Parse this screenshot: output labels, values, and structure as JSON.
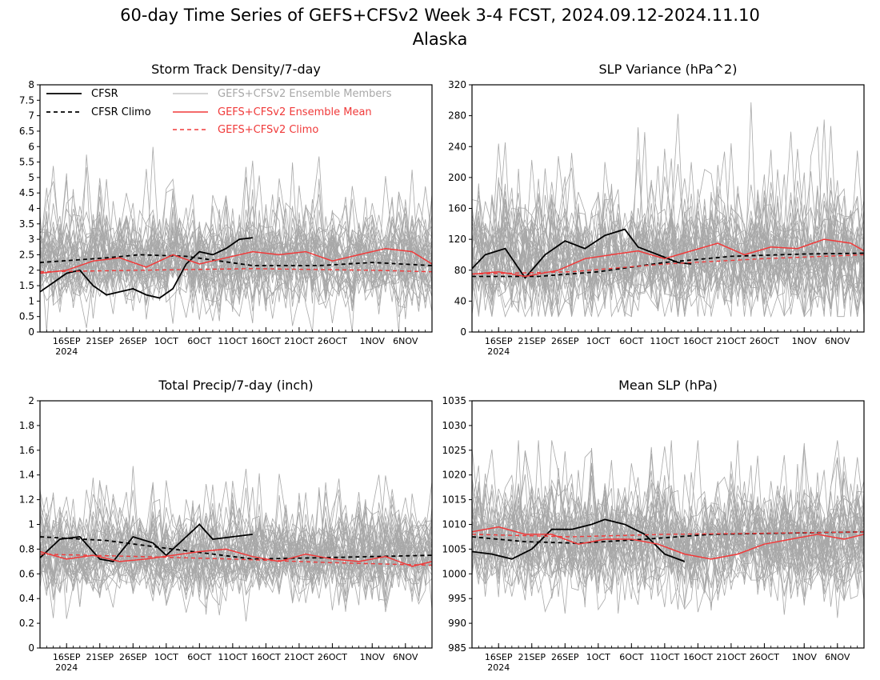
{
  "figure": {
    "title": "60-day Time Series of GEFS+CFSv2 Week 3-4 FCST, 2024.09.12-2024.11.10",
    "subtitle": "Alaska"
  },
  "colors": {
    "cfsr": "#000000",
    "members": "#a8a8a8",
    "ens_mean": "#f03a3a",
    "ens_climo": "#f03a3a"
  },
  "legend": {
    "cfsr": "CFSR",
    "cfsr_climo": "CFSR Climo",
    "members": "GEFS+CFSv2 Ensemble Members",
    "ens_mean": "GEFS+CFSv2 Ensemble Mean",
    "ens_climo": "GEFS+CFSv2 Climo"
  },
  "x_axis": {
    "start_date": "2024-09-12",
    "days": 60,
    "ticks": [
      {
        "date": "2024-09-16",
        "label": "16SEP"
      },
      {
        "date": "2024-09-21",
        "label": "21SEP"
      },
      {
        "date": "2024-09-26",
        "label": "26SEP"
      },
      {
        "date": "2024-10-01",
        "label": "1OCT"
      },
      {
        "date": "2024-10-06",
        "label": "6OCT"
      },
      {
        "date": "2024-10-11",
        "label": "11OCT"
      },
      {
        "date": "2024-10-16",
        "label": "16OCT"
      },
      {
        "date": "2024-10-21",
        "label": "21OCT"
      },
      {
        "date": "2024-10-26",
        "label": "26OCT"
      },
      {
        "date": "2024-11-01",
        "label": "1NOV"
      },
      {
        "date": "2024-11-06",
        "label": "6NOV"
      }
    ],
    "year_label": "2024"
  },
  "chart_data": [
    {
      "type": "line",
      "title": "Storm Track Density/7-day",
      "ylim": [
        0,
        8
      ],
      "yticks": [
        "0",
        "0.5",
        "1",
        "1.5",
        "2",
        "2.5",
        "3",
        "3.5",
        "4",
        "4.5",
        "5",
        "5.5",
        "6",
        "6.5",
        "7",
        "7.5",
        "8"
      ],
      "ytick_values": [
        0,
        0.5,
        1,
        1.5,
        2,
        2.5,
        3,
        3.5,
        4,
        4.5,
        5,
        5.5,
        6,
        6.5,
        7,
        7.5,
        8
      ],
      "legend": true,
      "member_spread": {
        "count": 40,
        "center": 2.3,
        "sd": 0.7,
        "min": 0,
        "max": 6.0,
        "seed": 11
      },
      "series": [
        {
          "name": "CFSR",
          "style": "cfsr",
          "x": [
            "2024-09-12",
            "2024-09-14",
            "2024-09-16",
            "2024-09-18",
            "2024-09-20",
            "2024-09-22",
            "2024-09-24",
            "2024-09-26",
            "2024-09-28",
            "2024-09-30",
            "2024-10-02",
            "2024-10-04",
            "2024-10-06",
            "2024-10-08",
            "2024-10-10",
            "2024-10-12",
            "2024-10-14"
          ],
          "y": [
            1.3,
            1.6,
            1.9,
            2.0,
            1.5,
            1.2,
            1.3,
            1.4,
            1.2,
            1.1,
            1.4,
            2.2,
            2.6,
            2.5,
            2.7,
            3.0,
            3.05
          ]
        },
        {
          "name": "CFSR Climo",
          "style": "cfsr_climo",
          "x": [
            "2024-09-12",
            "2024-09-22",
            "2024-09-27",
            "2024-10-04",
            "2024-10-14",
            "2024-10-24",
            "2024-11-01",
            "2024-11-10"
          ],
          "y": [
            2.25,
            2.4,
            2.5,
            2.45,
            2.15,
            2.15,
            2.25,
            2.15
          ]
        },
        {
          "name": "GEFS+CFSv2 Ensemble Mean",
          "style": "ens_mean",
          "x": [
            "2024-09-12",
            "2024-09-16",
            "2024-09-20",
            "2024-09-24",
            "2024-09-28",
            "2024-10-02",
            "2024-10-06",
            "2024-10-10",
            "2024-10-14",
            "2024-10-18",
            "2024-10-22",
            "2024-10-26",
            "2024-10-30",
            "2024-11-03",
            "2024-11-07",
            "2024-11-10"
          ],
          "y": [
            1.9,
            2.0,
            2.3,
            2.4,
            2.1,
            2.5,
            2.2,
            2.4,
            2.6,
            2.5,
            2.6,
            2.3,
            2.5,
            2.7,
            2.6,
            2.2
          ]
        },
        {
          "name": "GEFS+CFSv2 Climo",
          "style": "ens_climo",
          "x": [
            "2024-09-12",
            "2024-09-27",
            "2024-10-14",
            "2024-11-01",
            "2024-11-10"
          ],
          "y": [
            1.95,
            2.0,
            2.05,
            2.0,
            1.95
          ]
        }
      ]
    },
    {
      "type": "line",
      "title": "SLP Variance (hPa^2)",
      "ylim": [
        0,
        320
      ],
      "yticks": [
        "0",
        "40",
        "80",
        "120",
        "160",
        "200",
        "240",
        "280",
        "320"
      ],
      "ytick_values": [
        0,
        40,
        80,
        120,
        160,
        200,
        240,
        280,
        320
      ],
      "legend": false,
      "member_spread": {
        "count": 40,
        "center": 95,
        "sd": 35,
        "min": 20,
        "max": 315,
        "seed": 23
      },
      "series": [
        {
          "name": "CFSR",
          "style": "cfsr",
          "x": [
            "2024-09-12",
            "2024-09-14",
            "2024-09-17",
            "2024-09-20",
            "2024-09-23",
            "2024-09-26",
            "2024-09-29",
            "2024-10-02",
            "2024-10-05",
            "2024-10-07",
            "2024-10-10",
            "2024-10-13",
            "2024-10-15"
          ],
          "y": [
            82,
            100,
            108,
            70,
            100,
            118,
            108,
            125,
            133,
            110,
            100,
            90,
            88
          ]
        },
        {
          "name": "CFSR Climo",
          "style": "cfsr_climo",
          "x": [
            "2024-09-12",
            "2024-09-22",
            "2024-10-01",
            "2024-10-11",
            "2024-10-21",
            "2024-11-01",
            "2024-11-10"
          ],
          "y": [
            72,
            72,
            78,
            90,
            98,
            101,
            102
          ]
        },
        {
          "name": "GEFS+CFSv2 Ensemble Mean",
          "style": "ens_mean",
          "x": [
            "2024-09-12",
            "2024-09-16",
            "2024-09-20",
            "2024-09-25",
            "2024-09-29",
            "2024-10-03",
            "2024-10-07",
            "2024-10-11",
            "2024-10-15",
            "2024-10-19",
            "2024-10-23",
            "2024-10-27",
            "2024-10-31",
            "2024-11-04",
            "2024-11-08",
            "2024-11-10"
          ],
          "y": [
            75,
            78,
            72,
            80,
            95,
            100,
            105,
            95,
            105,
            115,
            100,
            110,
            108,
            120,
            115,
            105
          ]
        },
        {
          "name": "GEFS+CFSv2 Climo",
          "style": "ens_climo",
          "x": [
            "2024-09-12",
            "2024-09-27",
            "2024-10-11",
            "2024-10-26",
            "2024-11-10"
          ],
          "y": [
            75,
            78,
            88,
            95,
            100
          ]
        }
      ]
    },
    {
      "type": "line",
      "title": "Total Precip/7-day (inch)",
      "ylim": [
        0,
        2
      ],
      "yticks": [
        "0",
        "0.2",
        "0.4",
        "0.6",
        "0.8",
        "1",
        "1.2",
        "1.4",
        "1.6",
        "1.8",
        "2"
      ],
      "ytick_values": [
        0,
        0.2,
        0.4,
        0.6,
        0.8,
        1,
        1.2,
        1.4,
        1.6,
        1.8,
        2
      ],
      "legend": false,
      "member_spread": {
        "count": 40,
        "center": 0.75,
        "sd": 0.16,
        "min": 0.15,
        "max": 1.55,
        "seed": 37
      },
      "series": [
        {
          "name": "CFSR",
          "style": "cfsr",
          "x": [
            "2024-09-12",
            "2024-09-15",
            "2024-09-18",
            "2024-09-21",
            "2024-09-23",
            "2024-09-26",
            "2024-09-29",
            "2024-10-01",
            "2024-10-04",
            "2024-10-06",
            "2024-10-08",
            "2024-10-11",
            "2024-10-14"
          ],
          "y": [
            0.73,
            0.88,
            0.9,
            0.72,
            0.7,
            0.9,
            0.85,
            0.75,
            0.9,
            1.0,
            0.88,
            0.9,
            0.92
          ]
        },
        {
          "name": "CFSR Climo",
          "style": "cfsr_climo",
          "x": [
            "2024-09-12",
            "2024-09-22",
            "2024-10-02",
            "2024-10-14",
            "2024-10-24",
            "2024-11-10"
          ],
          "y": [
            0.9,
            0.87,
            0.8,
            0.72,
            0.73,
            0.75
          ]
        },
        {
          "name": "GEFS+CFSv2 Ensemble Mean",
          "style": "ens_mean",
          "x": [
            "2024-09-12",
            "2024-09-16",
            "2024-09-20",
            "2024-09-24",
            "2024-09-28",
            "2024-10-02",
            "2024-10-06",
            "2024-10-10",
            "2024-10-14",
            "2024-10-18",
            "2024-10-22",
            "2024-10-26",
            "2024-10-30",
            "2024-11-03",
            "2024-11-07",
            "2024-11-10"
          ],
          "y": [
            0.78,
            0.72,
            0.75,
            0.7,
            0.72,
            0.75,
            0.78,
            0.8,
            0.74,
            0.7,
            0.76,
            0.72,
            0.7,
            0.74,
            0.66,
            0.7
          ]
        },
        {
          "name": "GEFS+CFSv2 Climo",
          "style": "ens_climo",
          "x": [
            "2024-09-12",
            "2024-09-27",
            "2024-10-11",
            "2024-10-26",
            "2024-11-10"
          ],
          "y": [
            0.76,
            0.74,
            0.72,
            0.69,
            0.67
          ]
        }
      ]
    },
    {
      "type": "line",
      "title": "Mean SLP (hPa)",
      "ylim": [
        985,
        1035
      ],
      "yticks": [
        "985",
        "990",
        "995",
        "1000",
        "1005",
        "1010",
        "1015",
        "1020",
        "1025",
        "1030",
        "1035"
      ],
      "ytick_values": [
        985,
        990,
        995,
        1000,
        1005,
        1010,
        1015,
        1020,
        1025,
        1030,
        1035
      ],
      "legend": false,
      "member_spread": {
        "count": 40,
        "center": 1006.5,
        "sd": 5,
        "min": 990,
        "max": 1027,
        "seed": 51
      },
      "series": [
        {
          "name": "CFSR",
          "style": "cfsr",
          "x": [
            "2024-09-12",
            "2024-09-15",
            "2024-09-18",
            "2024-09-21",
            "2024-09-24",
            "2024-09-27",
            "2024-09-30",
            "2024-10-02",
            "2024-10-05",
            "2024-10-08",
            "2024-10-11",
            "2024-10-14"
          ],
          "y": [
            1004.5,
            1004,
            1003,
            1005,
            1009,
            1009,
            1010,
            1011,
            1010,
            1008,
            1004,
            1002.5
          ]
        },
        {
          "name": "CFSR Climo",
          "style": "cfsr_climo",
          "x": [
            "2024-09-12",
            "2024-09-20",
            "2024-09-28",
            "2024-10-08",
            "2024-10-18",
            "2024-10-28",
            "2024-11-10"
          ],
          "y": [
            1007.5,
            1006.5,
            1006.2,
            1007,
            1008,
            1008.2,
            1008.5
          ]
        },
        {
          "name": "GEFS+CFSv2 Ensemble Mean",
          "style": "ens_mean",
          "x": [
            "2024-09-12",
            "2024-09-16",
            "2024-09-20",
            "2024-09-24",
            "2024-09-28",
            "2024-10-02",
            "2024-10-06",
            "2024-10-10",
            "2024-10-14",
            "2024-10-18",
            "2024-10-22",
            "2024-10-26",
            "2024-10-30",
            "2024-11-03",
            "2024-11-07",
            "2024-11-10"
          ],
          "y": [
            1008.5,
            1009.5,
            1008,
            1008,
            1006,
            1007,
            1007,
            1006,
            1004,
            1003,
            1004,
            1006,
            1007,
            1008,
            1007,
            1008
          ]
        },
        {
          "name": "GEFS+CFSv2 Climo",
          "style": "ens_climo",
          "x": [
            "2024-09-12",
            "2024-09-27",
            "2024-10-11",
            "2024-10-26",
            "2024-11-10"
          ],
          "y": [
            1008,
            1007.5,
            1008,
            1008.2,
            1008.5
          ]
        }
      ]
    }
  ]
}
